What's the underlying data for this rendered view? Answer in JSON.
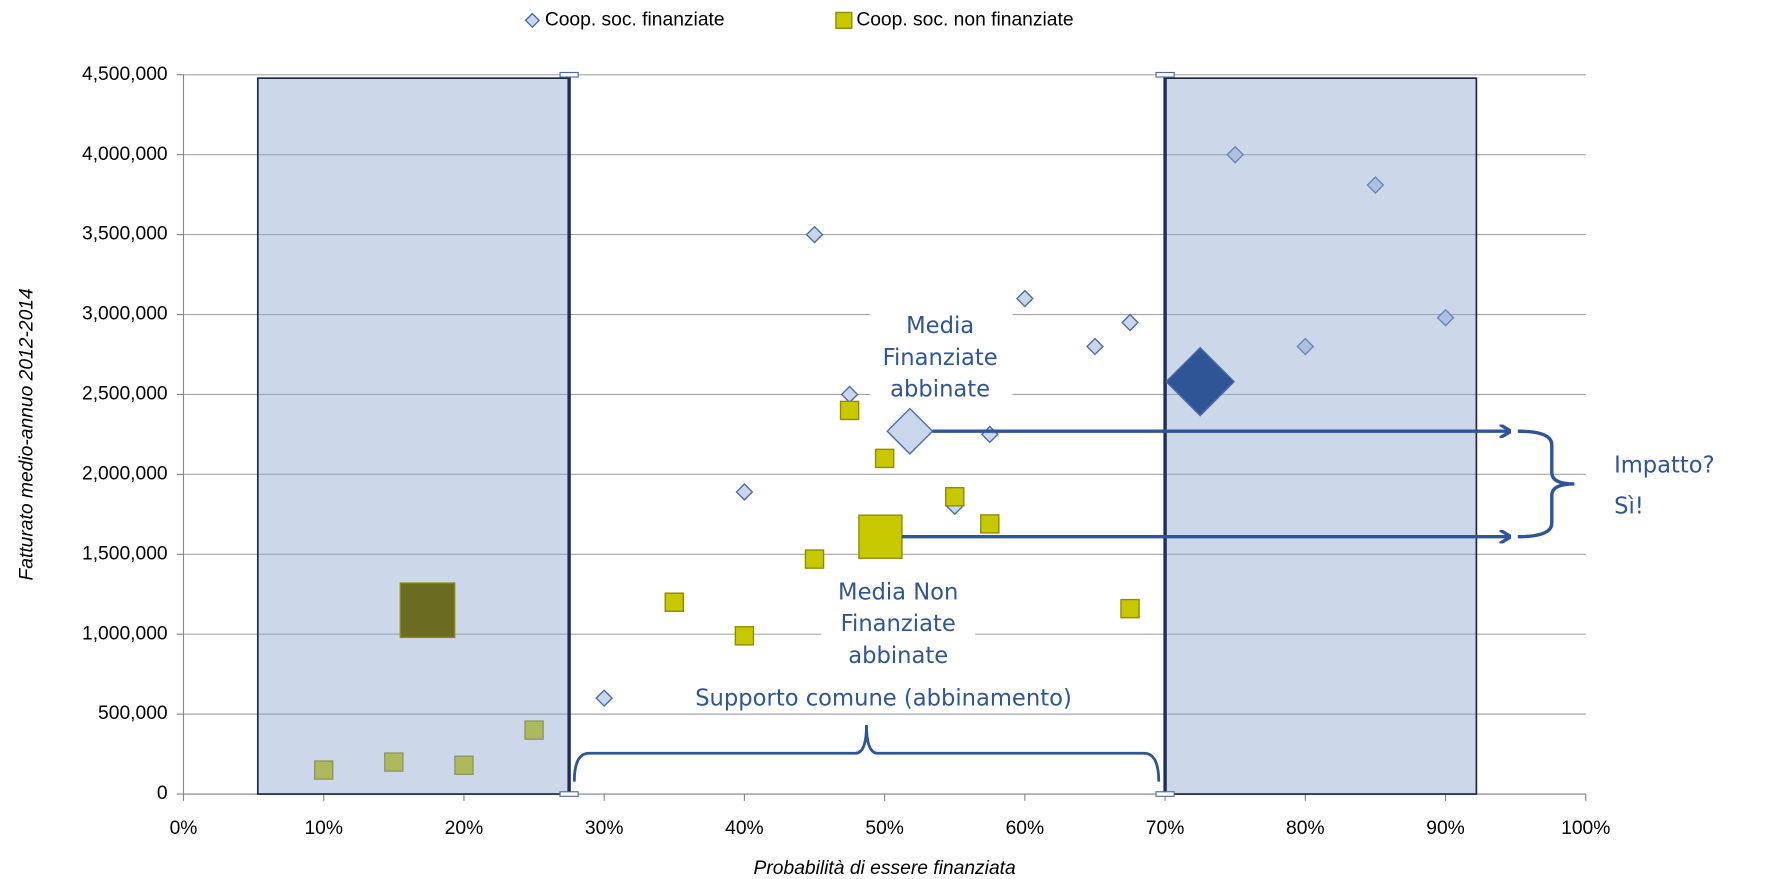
{
  "chart_data": {
    "type": "scatter",
    "x_label": "Probabilità di essere finanziata",
    "y_label": "Fatturato medio-annuo 2012-2014",
    "xlim": [
      0,
      100
    ],
    "ylim": [
      0,
      4500000
    ],
    "xticks": [
      {
        "value": 0,
        "label": "0%"
      },
      {
        "value": 10,
        "label": "10%"
      },
      {
        "value": 20,
        "label": "20%"
      },
      {
        "value": 30,
        "label": "30%"
      },
      {
        "value": 40,
        "label": "40%"
      },
      {
        "value": 50,
        "label": "50%"
      },
      {
        "value": 60,
        "label": "60%"
      },
      {
        "value": 70,
        "label": "70%"
      },
      {
        "value": 80,
        "label": "80%"
      },
      {
        "value": 90,
        "label": "90%"
      },
      {
        "value": 100,
        "label": "100%"
      }
    ],
    "yticks": [
      0,
      {
        "value": 500000,
        "label": "500,000"
      },
      {
        "value": 1000000,
        "label": "1,000,000"
      },
      {
        "value": 1500000,
        "label": "1,500,000"
      },
      {
        "value": 2000000,
        "label": "2,000,000"
      },
      {
        "value": 2500000,
        "label": "2,500,000"
      },
      {
        "value": 3000000,
        "label": "3,000,000"
      },
      {
        "value": 3500000,
        "label": "3,500,000"
      },
      {
        "value": 4000000,
        "label": "4,000,000"
      },
      {
        "value": 4500000,
        "label": "4,500,000"
      }
    ],
    "grid": true,
    "legend": "top",
    "series": [
      {
        "name": "Coop. soc. finanziate",
        "marker": "diamond",
        "color": "#c9d6ec",
        "x": [
          30,
          40,
          45,
          47.5,
          55,
          57.5,
          60,
          65,
          67.5,
          75,
          80,
          85,
          90
        ],
        "values": [
          600000,
          1890000,
          3500000,
          2500000,
          1800000,
          2250000,
          3100000,
          2800000,
          2950000,
          4000000,
          2800000,
          3810000,
          2980000
        ]
      },
      {
        "name": "Coop. soc. non finanziate",
        "marker": "square",
        "color": "#c8c800",
        "x": [
          10,
          15,
          20,
          25,
          35,
          40,
          45,
          47.5,
          50,
          55,
          57.5,
          67.5
        ],
        "values": [
          150000,
          200000,
          180000,
          400000,
          1200000,
          990000,
          1470000,
          2400000,
          2100000,
          1860000,
          1690000,
          1160000
        ]
      }
    ],
    "regions": [
      [
        5.3,
        27.5
      ],
      [
        70,
        92.2
      ]
    ],
    "highlights": [
      {
        "marker": "square",
        "color": "#6b6b22",
        "x": 17.4,
        "y": 1150000
      },
      {
        "marker": "diamond",
        "color": "#2f5597",
        "x": 72.5,
        "y": 2580000
      },
      {
        "marker": "diamond",
        "color": "#c9d6ec",
        "x": 51.8,
        "y": 2270000
      },
      {
        "marker": "square",
        "color": "#c8c800",
        "x": 49.7,
        "y": 1610000
      }
    ],
    "annotations": {
      "mean_treated": [
        "Media",
        "Finanziate",
        "abbinate"
      ],
      "mean_control": [
        "Media Non",
        "Finanziate",
        "abbinate"
      ],
      "common_support": "Supporto comune (abbinamento)",
      "impact": [
        "Impatto?",
        "Sì!"
      ]
    }
  }
}
